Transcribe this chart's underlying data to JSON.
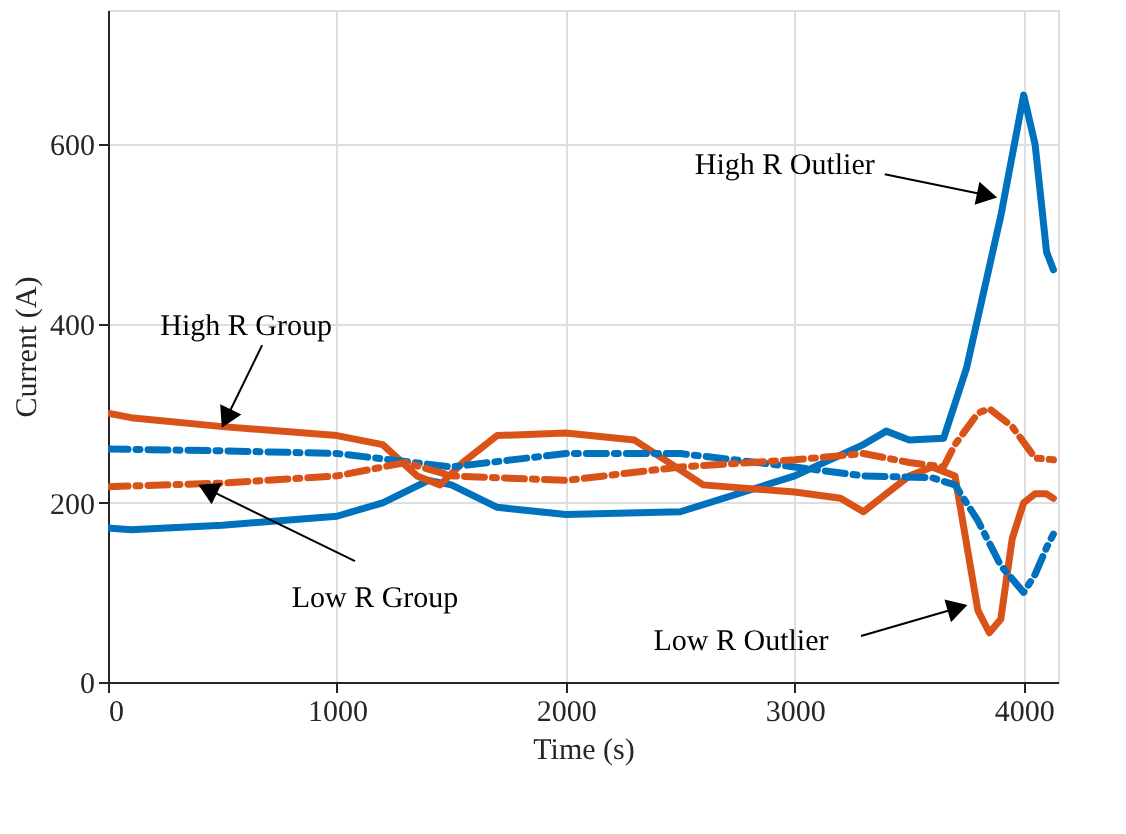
{
  "chart_data": {
    "type": "line",
    "xlabel": "Time (s)",
    "ylabel": "Current (A)",
    "xlim": [
      0,
      4150
    ],
    "ylim": [
      0,
      750
    ],
    "xticks": [
      0,
      {
        "value": 1000,
        "label": "1000"
      },
      {
        "value": 2000,
        "label": "2000"
      },
      {
        "value": 3000,
        "label": "3000"
      },
      {
        "value": 4000,
        "label": "4000"
      }
    ],
    "yticks": [
      0,
      200,
      400,
      600
    ],
    "grid": true,
    "marker": "none",
    "series": [
      {
        "color": "#0072bd",
        "line_style": "solid",
        "x": [
          0,
          100,
          500,
          1000,
          1200,
          1400,
          1500,
          1700,
          2000,
          2500,
          3000,
          3300,
          3400,
          3500,
          3650,
          3750,
          3900,
          4000,
          4050,
          4100,
          4130
        ],
        "values": [
          172,
          170,
          175,
          185,
          200,
          225,
          220,
          195,
          187,
          190,
          230,
          265,
          280,
          270,
          272,
          350,
          520,
          655,
          600,
          480,
          460
        ]
      },
      {
        "color": "#d95319",
        "line_style": "solid",
        "x": [
          0,
          100,
          500,
          1000,
          1200,
          1350,
          1450,
          1550,
          1700,
          2000,
          2300,
          2600,
          3000,
          3200,
          3300,
          3400,
          3500,
          3600,
          3700,
          3800,
          3850,
          3900,
          3950,
          4000,
          4050,
          4100,
          4130
        ],
        "values": [
          300,
          295,
          285,
          275,
          265,
          230,
          220,
          245,
          275,
          278,
          270,
          220,
          212,
          205,
          190,
          210,
          230,
          240,
          230,
          80,
          55,
          70,
          160,
          200,
          210,
          210,
          205
        ]
      },
      {
        "color": "#0072bd",
        "line_style": "dashed",
        "x": [
          0,
          500,
          1000,
          1500,
          2000,
          2500,
          3000,
          3300,
          3600,
          3700,
          3800,
          3900,
          4000,
          4050,
          4100,
          4130
        ],
        "values": [
          260,
          258,
          255,
          240,
          255,
          255,
          240,
          230,
          228,
          220,
          180,
          130,
          100,
          120,
          150,
          165
        ]
      },
      {
        "color": "#d95319",
        "line_style": "dashed",
        "x": [
          0,
          500,
          1000,
          1300,
          1500,
          2000,
          2500,
          3000,
          3300,
          3500,
          3650,
          3700,
          3800,
          3850,
          3950,
          4050,
          4130
        ],
        "values": [
          218,
          222,
          230,
          245,
          230,
          225,
          240,
          248,
          255,
          245,
          240,
          265,
          300,
          305,
          285,
          250,
          248
        ]
      }
    ],
    "annotations": [
      {
        "text": "High R Outlier",
        "x": 3900,
        "y": 540
      },
      {
        "text": "High R Group",
        "x": 490,
        "y": 280
      },
      {
        "text": "Low R Group",
        "x": 380,
        "y": 222
      },
      {
        "text": "Low R Outlier",
        "x": 3770,
        "y": 87
      }
    ]
  }
}
